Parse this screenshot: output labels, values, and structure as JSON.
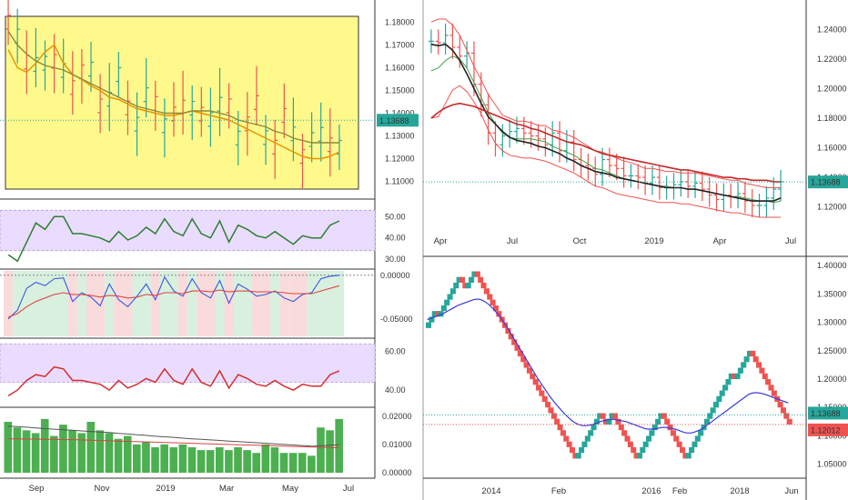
{
  "colors": {
    "bull": "#26a69a",
    "bear": "#ef5350",
    "highlight_box": "#fff98c",
    "osc_band": "#eadcff",
    "axis_border": "#333333"
  },
  "chart_data": [
    {
      "type": "bar",
      "panel": "weekly-ohlc",
      "ylim": [
        1.105,
        1.185
      ],
      "y_ticks": [
        "1.18000",
        "1.17000",
        "1.16000",
        "1.15000",
        "1.14000",
        "1.13000",
        "1.12000",
        "1.11000"
      ],
      "last_price_label": "1.13688",
      "last_price": 1.13688,
      "x_ticks": [
        "Sep",
        "Nov",
        "2019",
        "Mar",
        "May",
        "Jul"
      ],
      "series": [
        {
          "values": [
            1.168,
            1.16,
            1.158,
            1.162,
            1.167,
            1.17,
            1.162,
            1.157,
            1.155,
            1.152,
            1.15,
            1.147,
            1.146,
            1.144,
            1.142,
            1.141,
            1.14,
            1.139,
            1.139,
            1.14,
            1.141,
            1.14,
            1.139,
            1.138,
            1.137,
            1.135,
            1.133,
            1.131,
            1.129,
            1.127,
            1.125,
            1.123,
            1.121,
            1.12,
            1.12,
            1.121,
            1.123
          ]
        },
        {
          "values": [
            1.176,
            1.17,
            1.166,
            1.163,
            1.161,
            1.16,
            1.159,
            1.157,
            1.155,
            1.153,
            1.151,
            1.149,
            1.147,
            1.145,
            1.143,
            1.142,
            1.141,
            1.14,
            1.14,
            1.14,
            1.141,
            1.141,
            1.141,
            1.14,
            1.139,
            1.137,
            1.136,
            1.135,
            1.134,
            1.132,
            1.131,
            1.129,
            1.128,
            1.127,
            1.127,
            1.127,
            1.127
          ]
        }
      ]
    },
    {
      "type": "line",
      "panel": "oscillator-1",
      "ylim": [
        27,
        57
      ],
      "y_ticks": [
        "50.00",
        "40.00",
        "30.00"
      ],
      "series": [
        {
          "values": [
            32,
            29,
            38,
            47,
            44,
            50,
            50,
            42,
            42,
            41,
            40,
            38,
            43,
            39,
            41,
            45,
            42,
            49,
            43,
            41,
            49,
            42,
            40,
            48,
            38,
            46,
            44,
            41,
            40,
            43,
            40,
            37,
            41,
            40,
            40,
            46,
            48
          ]
        }
      ]
    },
    {
      "type": "line",
      "panel": "oscillator-2",
      "ylim": [
        -0.07,
        0.005
      ],
      "y_ticks": [
        "0.00000",
        "-0.05000"
      ],
      "series": [
        {
          "values": [
            -0.05,
            -0.04,
            -0.015,
            -0.008,
            -0.012,
            -0.004,
            -0.003,
            -0.03,
            -0.02,
            -0.025,
            -0.035,
            -0.01,
            -0.028,
            -0.036,
            -0.024,
            -0.01,
            -0.028,
            -0.002,
            -0.018,
            -0.024,
            -0.004,
            -0.02,
            -0.026,
            -0.006,
            -0.032,
            -0.01,
            -0.016,
            -0.024,
            -0.022,
            -0.018,
            -0.026,
            -0.03,
            -0.022,
            -0.02,
            -0.004,
            -0.001,
            0.0
          ]
        },
        {
          "values": [
            -0.048,
            -0.044,
            -0.036,
            -0.03,
            -0.026,
            -0.022,
            -0.02,
            -0.022,
            -0.022,
            -0.023,
            -0.025,
            -0.023,
            -0.024,
            -0.026,
            -0.025,
            -0.022,
            -0.023,
            -0.02,
            -0.02,
            -0.021,
            -0.018,
            -0.018,
            -0.019,
            -0.017,
            -0.019,
            -0.018,
            -0.018,
            -0.019,
            -0.019,
            -0.019,
            -0.02,
            -0.021,
            -0.021,
            -0.021,
            -0.018,
            -0.015,
            -0.012
          ]
        }
      ]
    },
    {
      "type": "line",
      "panel": "oscillator-3",
      "ylim": [
        32,
        66
      ],
      "y_ticks": [
        "60.00",
        "40.00"
      ],
      "series": [
        {
          "values": [
            37,
            40,
            45,
            48,
            47,
            52,
            51,
            45,
            45,
            44,
            43,
            40,
            45,
            41,
            43,
            46,
            44,
            51,
            45,
            43,
            51,
            44,
            42,
            50,
            41,
            48,
            46,
            43,
            42,
            45,
            42,
            40,
            43,
            42,
            42,
            48,
            50
          ]
        }
      ]
    },
    {
      "type": "bar",
      "panel": "volatility",
      "ylim": [
        0,
        0.0225
      ],
      "y_ticks": [
        "0.02000",
        "0.01000",
        "0.00000"
      ],
      "values": [
        0.018,
        0.016,
        0.015,
        0.014,
        0.019,
        0.013,
        0.017,
        0.015,
        0.014,
        0.018,
        0.015,
        0.014,
        0.012,
        0.013,
        0.01,
        0.011,
        0.009,
        0.01,
        0.009,
        0.01,
        0.009,
        0.008,
        0.008,
        0.009,
        0.008,
        0.009,
        0.008,
        0.007,
        0.01,
        0.009,
        0.007,
        0.007,
        0.007,
        0.006,
        0.016,
        0.015,
        0.019
      ],
      "series": [
        {
          "values": [
            0.0165,
            0.0163,
            0.0161,
            0.0158,
            0.0156,
            0.0154,
            0.0152,
            0.015,
            0.0148,
            0.0146,
            0.0144,
            0.0142,
            0.0139,
            0.0137,
            0.0134,
            0.0132,
            0.0129,
            0.0127,
            0.0125,
            0.0122,
            0.012,
            0.0118,
            0.0116,
            0.0114,
            0.0112,
            0.011,
            0.0108,
            0.0106,
            0.0104,
            0.0102,
            0.01,
            0.0098,
            0.0096,
            0.0094,
            0.0095,
            0.0097,
            0.0099
          ]
        },
        {
          "values": [
            0.012,
            0.012,
            0.0119,
            0.0119,
            0.0118,
            0.0118,
            0.0117,
            0.0117,
            0.0116,
            0.0115,
            0.0114,
            0.0113,
            0.0112,
            0.0111,
            0.011,
            0.0109,
            0.0108,
            0.0107,
            0.0106,
            0.0105,
            0.0104,
            0.0103,
            0.0102,
            0.0101,
            0.01,
            0.0099,
            0.0098,
            0.0097,
            0.0096,
            0.0095,
            0.0094,
            0.0093,
            0.0092,
            0.0091,
            0.009,
            0.0089,
            0.0088
          ]
        }
      ],
      "x_ticks": [
        "Sep",
        "Nov",
        "2019",
        "Mar",
        "May",
        "Jul"
      ]
    },
    {
      "type": "bar",
      "panel": "daily-ohlc-with-envelopes",
      "ylim": [
        1.105,
        1.255
      ],
      "y_ticks": [
        "1.24000",
        "1.22000",
        "1.20000",
        "1.18000",
        "1.16000",
        "1.14000",
        "1.12000"
      ],
      "last_price_label": "1.13688",
      "last_price": 1.13688,
      "x_ticks": [
        "Apr",
        "Jul",
        "Oct",
        "2019",
        "Apr",
        "Jul"
      ],
      "values": [
        1.232,
        1.231,
        1.236,
        1.228,
        1.222,
        1.224,
        1.203,
        1.189,
        1.17,
        1.162,
        1.168,
        1.171,
        1.173,
        1.17,
        1.168,
        1.166,
        1.162,
        1.17,
        1.158,
        1.164,
        1.152,
        1.148,
        1.146,
        1.142,
        1.152,
        1.148,
        1.146,
        1.141,
        1.141,
        1.14,
        1.136,
        1.14,
        1.133,
        1.133,
        1.135,
        1.137,
        1.134,
        1.136,
        1.132,
        1.128,
        1.125,
        1.128,
        1.127,
        1.129,
        1.124,
        1.121,
        1.121,
        1.126,
        1.132,
        1.137
      ],
      "series": [
        {
          "values": [
            1.245,
            1.247,
            1.247,
            1.243,
            1.236,
            1.226,
            1.215,
            1.206,
            1.196,
            1.189,
            1.182,
            1.18,
            1.178,
            1.178,
            1.177,
            1.175,
            1.175,
            1.172,
            1.171,
            1.169,
            1.167,
            1.164,
            1.161,
            1.158,
            1.157,
            1.155,
            1.153,
            1.151,
            1.15,
            1.148,
            1.146,
            1.146,
            1.145,
            1.144,
            1.144,
            1.143,
            1.143,
            1.143,
            1.142,
            1.141,
            1.14,
            1.139,
            1.138,
            1.138,
            1.136,
            1.135,
            1.134,
            1.133,
            1.133,
            1.133
          ]
        },
        {
          "values": [
            1.212,
            1.214,
            1.219,
            1.222,
            1.22,
            1.214,
            1.204,
            1.194,
            1.184,
            1.176,
            1.17,
            1.167,
            1.166,
            1.166,
            1.166,
            1.165,
            1.164,
            1.161,
            1.159,
            1.157,
            1.155,
            1.152,
            1.149,
            1.146,
            1.145,
            1.143,
            1.141,
            1.139,
            1.138,
            1.137,
            1.136,
            1.135,
            1.134,
            1.134,
            1.133,
            1.133,
            1.132,
            1.132,
            1.131,
            1.13,
            1.129,
            1.128,
            1.127,
            1.127,
            1.126,
            1.125,
            1.124,
            1.124,
            1.123,
            1.124
          ]
        },
        {
          "values": [
            1.18,
            1.181,
            1.19,
            1.199,
            1.202,
            1.198,
            1.191,
            1.183,
            1.172,
            1.163,
            1.158,
            1.155,
            1.154,
            1.153,
            1.153,
            1.152,
            1.151,
            1.149,
            1.147,
            1.145,
            1.143,
            1.14,
            1.137,
            1.134,
            1.133,
            1.131,
            1.129,
            1.128,
            1.127,
            1.126,
            1.125,
            1.124,
            1.123,
            1.123,
            1.123,
            1.122,
            1.122,
            1.121,
            1.12,
            1.119,
            1.118,
            1.117,
            1.116,
            1.116,
            1.115,
            1.114,
            1.113,
            1.113,
            1.113,
            1.113
          ]
        },
        {
          "values": [
            1.23,
            1.229,
            1.23,
            1.226,
            1.219,
            1.21,
            1.2,
            1.19,
            1.181,
            1.176,
            1.171,
            1.167,
            1.165,
            1.164,
            1.163,
            1.161,
            1.16,
            1.158,
            1.156,
            1.153,
            1.151,
            1.148,
            1.146,
            1.144,
            1.143,
            1.142,
            1.14,
            1.139,
            1.138,
            1.137,
            1.136,
            1.135,
            1.134,
            1.133,
            1.133,
            1.133,
            1.132,
            1.132,
            1.131,
            1.13,
            1.129,
            1.128,
            1.127,
            1.126,
            1.125,
            1.124,
            1.124,
            1.124,
            1.124,
            1.126
          ]
        },
        {
          "values": [
            1.18,
            1.184,
            1.187,
            1.189,
            1.19,
            1.189,
            1.188,
            1.186,
            1.184,
            1.182,
            1.18,
            1.178,
            1.176,
            1.175,
            1.173,
            1.172,
            1.17,
            1.168,
            1.166,
            1.164,
            1.163,
            1.162,
            1.16,
            1.158,
            1.156,
            1.155,
            1.154,
            1.153,
            1.152,
            1.151,
            1.15,
            1.149,
            1.148,
            1.147,
            1.146,
            1.145,
            1.145,
            1.144,
            1.143,
            1.142,
            1.141,
            1.14,
            1.14,
            1.139,
            1.139,
            1.138,
            1.138,
            1.138,
            1.137,
            1.137
          ]
        }
      ]
    },
    {
      "type": "bar",
      "panel": "renko-weekly",
      "ylim": [
        1.035,
        1.41
      ],
      "y_ticks": [
        "1.40000",
        "1.35000",
        "1.30000",
        "1.25000",
        "1.20000",
        "1.15000",
        "1.10000",
        "1.05000"
      ],
      "price_labels": [
        {
          "text": "1.13688",
          "value": 1.13688
        },
        {
          "text": "1.12012",
          "value": 1.12012
        }
      ],
      "x_ticks": [
        "2014",
        "Feb",
        "2016",
        "Feb",
        "2018",
        "Jun"
      ],
      "values": [
        1.3,
        1.31,
        1.32,
        1.31,
        1.32,
        1.33,
        1.34,
        1.35,
        1.36,
        1.37,
        1.38,
        1.37,
        1.36,
        1.37,
        1.38,
        1.39,
        1.38,
        1.37,
        1.36,
        1.35,
        1.34,
        1.33,
        1.32,
        1.31,
        1.3,
        1.29,
        1.28,
        1.27,
        1.26,
        1.25,
        1.24,
        1.23,
        1.22,
        1.21,
        1.2,
        1.19,
        1.18,
        1.17,
        1.16,
        1.15,
        1.14,
        1.13,
        1.12,
        1.11,
        1.1,
        1.09,
        1.08,
        1.07,
        1.06,
        1.07,
        1.08,
        1.09,
        1.1,
        1.11,
        1.12,
        1.13,
        1.14,
        1.13,
        1.12,
        1.13,
        1.14,
        1.13,
        1.12,
        1.11,
        1.1,
        1.09,
        1.08,
        1.07,
        1.06,
        1.07,
        1.08,
        1.09,
        1.1,
        1.11,
        1.12,
        1.13,
        1.14,
        1.13,
        1.12,
        1.11,
        1.1,
        1.09,
        1.08,
        1.07,
        1.06,
        1.07,
        1.08,
        1.09,
        1.1,
        1.11,
        1.12,
        1.13,
        1.14,
        1.15,
        1.16,
        1.17,
        1.18,
        1.19,
        1.2,
        1.21,
        1.2,
        1.21,
        1.22,
        1.23,
        1.24,
        1.25,
        1.24,
        1.23,
        1.22,
        1.21,
        1.2,
        1.19,
        1.18,
        1.17,
        1.16,
        1.15,
        1.14,
        1.13,
        1.12
      ],
      "series": [
        {
          "values": [
            1.305,
            1.307,
            1.309,
            1.311,
            1.313,
            1.315,
            1.318,
            1.321,
            1.324,
            1.327,
            1.33,
            1.332,
            1.334,
            1.336,
            1.338,
            1.34,
            1.341,
            1.341,
            1.339,
            1.336,
            1.332,
            1.327,
            1.321,
            1.315,
            1.308,
            1.3,
            1.292,
            1.283,
            1.274,
            1.265,
            1.256,
            1.247,
            1.238,
            1.229,
            1.22,
            1.211,
            1.202,
            1.194,
            1.186,
            1.178,
            1.17,
            1.163,
            1.156,
            1.15,
            1.144,
            1.138,
            1.133,
            1.128,
            1.124,
            1.121,
            1.119,
            1.118,
            1.118,
            1.119,
            1.12,
            1.122,
            1.124,
            1.126,
            1.127,
            1.128,
            1.129,
            1.129,
            1.128,
            1.127,
            1.126,
            1.125,
            1.123,
            1.121,
            1.119,
            1.117,
            1.115,
            1.113,
            1.112,
            1.112,
            1.112,
            1.113,
            1.114,
            1.115,
            1.115,
            1.114,
            1.113,
            1.112,
            1.11,
            1.108,
            1.106,
            1.105,
            1.105,
            1.106,
            1.108,
            1.11,
            1.113,
            1.117,
            1.121,
            1.125,
            1.129,
            1.133,
            1.137,
            1.141,
            1.145,
            1.149,
            1.153,
            1.157,
            1.161,
            1.165,
            1.169,
            1.173,
            1.175,
            1.176,
            1.176,
            1.175,
            1.174,
            1.172,
            1.17,
            1.168,
            1.166,
            1.164,
            1.162,
            1.16,
            1.158
          ]
        }
      ]
    }
  ]
}
